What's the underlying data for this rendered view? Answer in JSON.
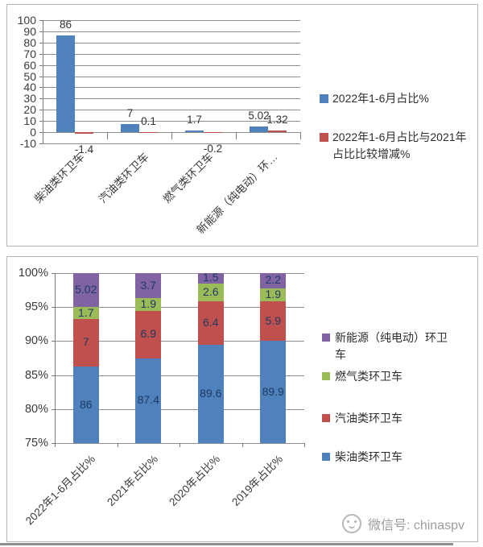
{
  "watermark": {
    "icon": "wechat-face-icon",
    "text": "微信号: chinaspv"
  },
  "chart_data": [
    {
      "type": "bar",
      "title": "",
      "categories": [
        "柴油类环卫车",
        "汽油类环卫车",
        "燃气类环卫车",
        "新能源（纯电动）环…"
      ],
      "series": [
        {
          "name": "2022年1-6月占比%",
          "color": "#4F81BD",
          "values": [
            86,
            7,
            1.7,
            5.02
          ]
        },
        {
          "name": "2022年1-6月占比与2021年占比比较增减%",
          "color": "#C0504D",
          "values": [
            -1.4,
            0.1,
            -0.2,
            1.32
          ]
        }
      ],
      "ylim": [
        -10,
        100
      ],
      "ytick_step": 10,
      "grid": true,
      "data_labels": true,
      "legend_position": "right"
    },
    {
      "type": "stacked-bar-100",
      "title": "",
      "categories": [
        "2022年1-6月占比%",
        "2021年占比%",
        "2020年占比%",
        "2019年占比%"
      ],
      "series": [
        {
          "name": "柴油类环卫车",
          "color": "#4F81BD",
          "values": [
            86,
            87.4,
            89.6,
            89.9
          ]
        },
        {
          "name": "汽油类环卫车",
          "color": "#C0504D",
          "values": [
            7,
            6.9,
            6.4,
            5.9
          ]
        },
        {
          "name": "燃气类环卫车",
          "color": "#9BBB59",
          "values": [
            1.7,
            1.9,
            2.6,
            1.9
          ]
        },
        {
          "name": "新能源（纯电动）环卫车",
          "color": "#8064A2",
          "values": [
            5.02,
            3.7,
            1.5,
            2.2
          ]
        }
      ],
      "ylim": [
        75,
        100
      ],
      "ytick_labels": [
        "100%",
        "95%",
        "90%",
        "85%",
        "80%",
        "75%"
      ],
      "grid": true,
      "data_labels": true,
      "legend_position": "right",
      "legend_order": "reversed"
    }
  ]
}
